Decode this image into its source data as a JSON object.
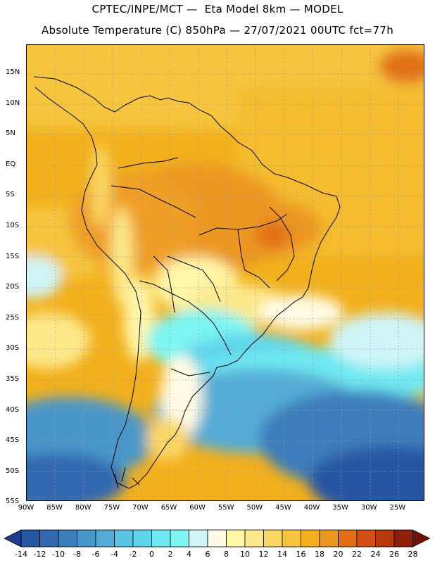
{
  "header": {
    "title_line1": "CPTEC/INPE/MCT —  Eta Model 8km — MODEL",
    "title_line2": "Absolute Temperature (C) 850hPa — 27/07/2021 00UTC fct=77h"
  },
  "map": {
    "region": "South America",
    "variable": "Absolute Temperature (C)",
    "level": "850hPa",
    "lat_labels": [
      "15N",
      "10N",
      "5N",
      "EQ",
      "5S",
      "10S",
      "15S",
      "20S",
      "25S",
      "30S",
      "35S",
      "40S",
      "45S",
      "50S",
      "55S"
    ],
    "lon_labels": [
      "90W",
      "85W",
      "80W",
      "75W",
      "70W",
      "65W",
      "60W",
      "55W",
      "50W",
      "45W",
      "40W",
      "35W",
      "30W",
      "25W"
    ]
  },
  "colorbar": {
    "labels": [
      "-14",
      "-12",
      "-10",
      "-8",
      "-6",
      "-4",
      "-2",
      "0",
      "2",
      "4",
      "6",
      "8",
      "10",
      "12",
      "14",
      "16",
      "18",
      "20",
      "22",
      "24",
      "26",
      "28"
    ],
    "colors": [
      "#1c3c8c",
      "#2756a3",
      "#3168b0",
      "#3c7dbb",
      "#4996c9",
      "#55acd6",
      "#59c4e3",
      "#5fd5ec",
      "#70e9f2",
      "#7cf5f3",
      "#cff5f8",
      "#fffbe6",
      "#fff6a8",
      "#fde88a",
      "#fad765",
      "#f6c53e",
      "#f2b01c",
      "#ec9722",
      "#e26f16",
      "#d04f12",
      "#b43a0e",
      "#8e2009",
      "#6e1407"
    ]
  }
}
